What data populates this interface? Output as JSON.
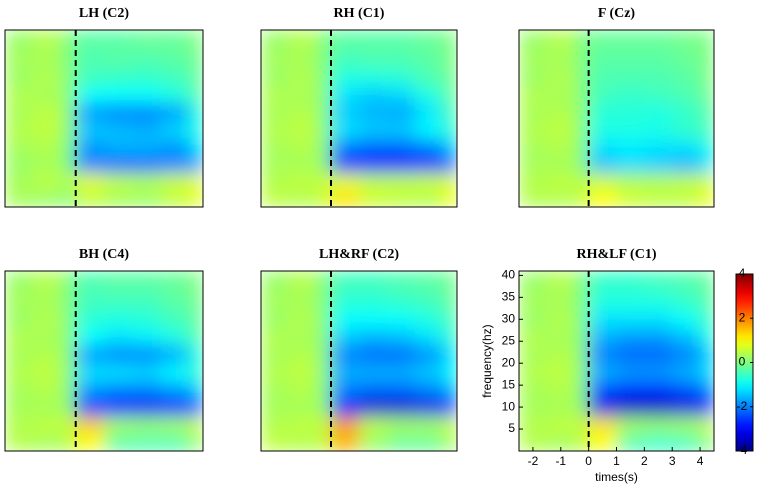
{
  "chart_data": [
    {
      "type": "heatmap",
      "title": "LH (C2)",
      "xlim": [
        -2.5,
        4.5
      ],
      "ylim": [
        0,
        41
      ],
      "zlim": [
        -4,
        4
      ],
      "vline": 0,
      "x_bins": [
        -2.5,
        -1.5,
        -0.5,
        0,
        1,
        2,
        3,
        4,
        4.5
      ],
      "y_bins": [
        0,
        4,
        8,
        12,
        16,
        20,
        24,
        28,
        32,
        36,
        41
      ],
      "z": [
        [
          0.3,
          0.2,
          0,
          0.5,
          0.3,
          0.2,
          0.5,
          0.8
        ],
        [
          0.3,
          0.5,
          0.3,
          0.8,
          0.5,
          0.4,
          0.6,
          0.8
        ],
        [
          0.2,
          0.3,
          0,
          -2.0,
          -2.2,
          -2.2,
          -2.0,
          -1.8
        ],
        [
          0.3,
          0.4,
          0,
          -1.8,
          -1.6,
          -1.6,
          -1.8,
          -1.2
        ],
        [
          0.4,
          0.5,
          0.1,
          -1.4,
          -1.5,
          -1.6,
          -1.3,
          -0.8
        ],
        [
          0.3,
          0.5,
          0.1,
          -1.8,
          -2.0,
          -2.0,
          -1.8,
          -0.8
        ],
        [
          0.4,
          0.3,
          0.1,
          -1.0,
          -1.0,
          -1.0,
          -0.8,
          -0.3
        ],
        [
          0.2,
          0.4,
          0,
          -0.5,
          -0.6,
          -0.6,
          -0.5,
          -0.2
        ],
        [
          0.3,
          0.3,
          0,
          -0.4,
          -0.3,
          -0.4,
          -0.3,
          -0.1
        ],
        [
          0.2,
          0.4,
          0,
          -0.3,
          -0.3,
          -0.2,
          -0.2,
          0
        ]
      ]
    },
    {
      "type": "heatmap",
      "title": "RH (C1)",
      "xlim": [
        -2.5,
        4.5
      ],
      "ylim": [
        0,
        41
      ],
      "zlim": [
        -4,
        4
      ],
      "vline": 0,
      "x_bins": [
        -2.5,
        -1.5,
        -0.5,
        0,
        1,
        2,
        3,
        4,
        4.5
      ],
      "y_bins": [
        0,
        4,
        8,
        12,
        16,
        20,
        24,
        28,
        32,
        36,
        41
      ],
      "z": [
        [
          0.5,
          0.4,
          0.6,
          1.2,
          0.6,
          0.5,
          0.4,
          0.9
        ],
        [
          0.4,
          0.5,
          0.5,
          0.8,
          0.5,
          0.5,
          0.6,
          0.7
        ],
        [
          0.3,
          0.3,
          0.2,
          -2.8,
          -3.0,
          -3.0,
          -2.8,
          -2.2
        ],
        [
          0.3,
          0.4,
          0.1,
          -2.0,
          -2.2,
          -2.2,
          -2.0,
          -1.4
        ],
        [
          0.4,
          0.5,
          0.1,
          -1.2,
          -1.4,
          -1.4,
          -1.0,
          -0.6
        ],
        [
          0.3,
          0.4,
          0.1,
          -1.4,
          -1.6,
          -1.7,
          -1.2,
          -0.4
        ],
        [
          0.4,
          0.3,
          0.1,
          -1.2,
          -1.4,
          -1.3,
          -0.8,
          -0.2
        ],
        [
          0.2,
          0.4,
          0,
          -0.8,
          -0.8,
          -0.7,
          -0.4,
          -0.1
        ],
        [
          0.3,
          0.3,
          0,
          -0.5,
          -0.4,
          -0.4,
          -0.3,
          0
        ],
        [
          0.2,
          0.4,
          0,
          -0.3,
          -0.3,
          -0.3,
          -0.2,
          0
        ]
      ]
    },
    {
      "type": "heatmap",
      "title": "F (Cz)",
      "xlim": [
        -2.5,
        4.5
      ],
      "ylim": [
        0,
        41
      ],
      "zlim": [
        -4,
        4
      ],
      "vline": 0,
      "x_bins": [
        -2.5,
        -1.5,
        -0.5,
        0,
        1,
        2,
        3,
        4,
        4.5
      ],
      "y_bins": [
        0,
        4,
        8,
        12,
        16,
        20,
        24,
        28,
        32,
        36,
        41
      ],
      "z": [
        [
          0.4,
          0.4,
          0.5,
          1.0,
          0.6,
          0.5,
          0.5,
          0.9
        ],
        [
          0.4,
          0.5,
          0.4,
          0.6,
          0.4,
          0.4,
          0.5,
          0.6
        ],
        [
          0.3,
          0.3,
          0.1,
          -1.5,
          -1.3,
          -1.4,
          -1.6,
          -1.2
        ],
        [
          0.3,
          0.4,
          0.1,
          -1.2,
          -1.1,
          -1.2,
          -1.2,
          -0.8
        ],
        [
          0.4,
          0.5,
          0.1,
          -0.8,
          -0.8,
          -0.8,
          -0.6,
          -0.4
        ],
        [
          0.3,
          0.4,
          0.1,
          -0.7,
          -0.7,
          -0.8,
          -0.6,
          -0.3
        ],
        [
          0.4,
          0.3,
          0.1,
          -0.5,
          -0.6,
          -0.5,
          -0.4,
          -0.1
        ],
        [
          0.2,
          0.4,
          0,
          -0.4,
          -0.4,
          -0.4,
          -0.3,
          0
        ],
        [
          0.3,
          0.3,
          0,
          -0.3,
          -0.3,
          -0.3,
          -0.2,
          0
        ],
        [
          0.2,
          0.4,
          0,
          -0.2,
          -0.2,
          -0.2,
          -0.1,
          0
        ]
      ]
    },
    {
      "type": "heatmap",
      "title": "BH (C4)",
      "xlim": [
        -2.5,
        4.5
      ],
      "ylim": [
        0,
        41
      ],
      "zlim": [
        -4,
        4
      ],
      "vline": 0,
      "x_bins": [
        -2.5,
        -1.5,
        -0.5,
        0,
        1,
        2,
        3,
        4,
        4.5
      ],
      "y_bins": [
        0,
        4,
        8,
        12,
        16,
        20,
        24,
        28,
        32,
        36,
        41
      ],
      "z": [
        [
          0.4,
          0.3,
          0.4,
          1.0,
          -0.3,
          -0.4,
          -0.4,
          0.2
        ],
        [
          0.4,
          0.5,
          0.5,
          1.4,
          0.3,
          0.2,
          0.3,
          0.6
        ],
        [
          0.3,
          0.3,
          0.2,
          -2.6,
          -3.0,
          -3.1,
          -2.9,
          -2.4
        ],
        [
          0.3,
          0.4,
          0.1,
          -1.8,
          -2.0,
          -2.0,
          -1.8,
          -1.4
        ],
        [
          0.4,
          0.5,
          0.1,
          -1.2,
          -1.2,
          -1.3,
          -1.0,
          -0.6
        ],
        [
          0.3,
          0.4,
          0.1,
          -1.8,
          -2.0,
          -2.0,
          -1.7,
          -0.8
        ],
        [
          0.4,
          0.3,
          0.1,
          -1.0,
          -1.2,
          -1.1,
          -0.8,
          -0.3
        ],
        [
          0.2,
          0.4,
          0,
          -0.7,
          -0.8,
          -0.7,
          -0.5,
          -0.2
        ],
        [
          0.3,
          0.3,
          0,
          -0.5,
          -0.5,
          -0.5,
          -0.3,
          -0.1
        ],
        [
          0.2,
          0.4,
          0,
          -0.4,
          -0.3,
          -0.3,
          -0.2,
          0
        ]
      ]
    },
    {
      "type": "heatmap",
      "title": "LH&RF (C2)",
      "xlim": [
        -2.5,
        4.5
      ],
      "ylim": [
        0,
        41
      ],
      "zlim": [
        -4,
        4
      ],
      "vline": 0,
      "x_bins": [
        -2.5,
        -1.5,
        -0.5,
        0,
        1,
        2,
        3,
        4,
        4.5
      ],
      "y_bins": [
        0,
        4,
        8,
        12,
        16,
        20,
        24,
        28,
        32,
        36,
        41
      ],
      "z": [
        [
          0.5,
          0.4,
          0.5,
          1.6,
          0.2,
          -0.2,
          -0.2,
          0.3
        ],
        [
          0.4,
          0.5,
          0.5,
          1.8,
          0.5,
          0.3,
          0.3,
          0.6
        ],
        [
          0.3,
          0.3,
          0.2,
          -3.0,
          -3.4,
          -3.4,
          -3.2,
          -2.8
        ],
        [
          0.3,
          0.4,
          0.1,
          -2.0,
          -2.2,
          -2.2,
          -2.0,
          -1.6
        ],
        [
          0.4,
          0.5,
          0.1,
          -1.6,
          -1.6,
          -1.6,
          -1.4,
          -1.0
        ],
        [
          0.3,
          0.4,
          0.1,
          -2.0,
          -2.2,
          -2.2,
          -1.9,
          -1.2
        ],
        [
          0.4,
          0.3,
          0.1,
          -1.4,
          -1.6,
          -1.5,
          -1.2,
          -0.6
        ],
        [
          0.2,
          0.4,
          0,
          -1.0,
          -1.0,
          -1.0,
          -0.8,
          -0.4
        ],
        [
          0.3,
          0.3,
          0,
          -0.7,
          -0.7,
          -0.6,
          -0.5,
          -0.2
        ],
        [
          0.2,
          0.4,
          0,
          -0.5,
          -0.5,
          -0.4,
          -0.3,
          -0.1
        ]
      ]
    },
    {
      "type": "heatmap",
      "title": "RH&LF (C1)",
      "xlabel": "times(s)",
      "ylabel": "frequency(hz)",
      "xlim": [
        -2.5,
        4.5
      ],
      "ylim": [
        0,
        41
      ],
      "zlim": [
        -4,
        4
      ],
      "vline": 0,
      "x_bins": [
        -2.5,
        -1.5,
        -0.5,
        0,
        1,
        2,
        3,
        4,
        4.5
      ],
      "y_bins": [
        0,
        4,
        8,
        12,
        16,
        20,
        24,
        28,
        32,
        36,
        41
      ],
      "xticks": [
        -2,
        -1,
        0,
        1,
        2,
        3,
        4
      ],
      "yticks": [
        5,
        10,
        15,
        20,
        25,
        30,
        35,
        40
      ],
      "zticks": [
        -4,
        -2,
        0,
        2,
        4
      ],
      "z": [
        [
          0.4,
          0.3,
          0.4,
          1.0,
          -0.4,
          -0.6,
          -0.5,
          0.1
        ],
        [
          0.4,
          0.5,
          0.5,
          1.2,
          0.3,
          0.2,
          0.3,
          0.6
        ],
        [
          0.3,
          0.3,
          0.2,
          -3.2,
          -3.5,
          -3.5,
          -3.3,
          -2.8
        ],
        [
          0.3,
          0.4,
          0.1,
          -2.4,
          -2.6,
          -2.6,
          -2.4,
          -2.0
        ],
        [
          0.4,
          0.5,
          0.1,
          -1.6,
          -1.8,
          -1.8,
          -1.6,
          -1.2
        ],
        [
          0.3,
          0.4,
          0.1,
          -2.0,
          -2.2,
          -2.2,
          -2.0,
          -1.4
        ],
        [
          0.4,
          0.3,
          0.1,
          -1.6,
          -1.8,
          -1.8,
          -1.5,
          -0.8
        ],
        [
          0.2,
          0.4,
          0,
          -1.2,
          -1.2,
          -1.2,
          -1.0,
          -0.5
        ],
        [
          0.3,
          0.3,
          0,
          -0.8,
          -0.8,
          -0.8,
          -0.6,
          -0.3
        ],
        [
          0.2,
          0.4,
          0,
          -0.6,
          -0.6,
          -0.5,
          -0.4,
          -0.2
        ]
      ]
    }
  ]
}
